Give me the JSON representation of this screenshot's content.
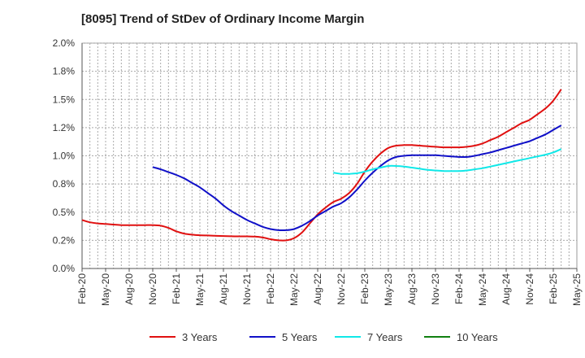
{
  "chart_data": {
    "type": "line",
    "title": "[8095]  Trend of StDev of Ordinary Income Margin",
    "xlabel": "",
    "ylabel": "",
    "ylim": [
      0,
      2.0
    ],
    "y_ticks": [
      0,
      0.25,
      0.5,
      0.75,
      1.0,
      1.25,
      1.5,
      1.75,
      2.0
    ],
    "y_tick_labels": [
      "0.0%",
      "0.2%",
      "0.5%",
      "0.8%",
      "1.0%",
      "1.2%",
      "1.5%",
      "1.8%",
      "2.0%"
    ],
    "x_tick_labels": [
      "Feb-20",
      "May-20",
      "Aug-20",
      "Nov-20",
      "Feb-21",
      "May-21",
      "Aug-21",
      "Nov-21",
      "Feb-22",
      "May-22",
      "Aug-22",
      "Nov-22",
      "Feb-23",
      "May-23",
      "Aug-23",
      "Nov-23",
      "Feb-24",
      "May-24",
      "Aug-24",
      "Nov-24",
      "Feb-25",
      "May-25"
    ],
    "grid": true,
    "legend_position": "bottom",
    "series": [
      {
        "name": "3 Years",
        "color": "#e01010",
        "points": [
          {
            "x": "Feb-20",
            "y": 0.43
          },
          {
            "x": "Mar-20",
            "y": 0.41
          },
          {
            "x": "Apr-20",
            "y": 0.4
          },
          {
            "x": "May-20",
            "y": 0.395
          },
          {
            "x": "Jun-20",
            "y": 0.39
          },
          {
            "x": "Jul-20",
            "y": 0.385
          },
          {
            "x": "Aug-20",
            "y": 0.385
          },
          {
            "x": "Sep-20",
            "y": 0.385
          },
          {
            "x": "Oct-20",
            "y": 0.385
          },
          {
            "x": "Nov-20",
            "y": 0.385
          },
          {
            "x": "Dec-20",
            "y": 0.38
          },
          {
            "x": "Jan-21",
            "y": 0.36
          },
          {
            "x": "Feb-21",
            "y": 0.33
          },
          {
            "x": "Mar-21",
            "y": 0.31
          },
          {
            "x": "Apr-21",
            "y": 0.3
          },
          {
            "x": "May-21",
            "y": 0.295
          },
          {
            "x": "Jun-21",
            "y": 0.293
          },
          {
            "x": "Jul-21",
            "y": 0.29
          },
          {
            "x": "Aug-21",
            "y": 0.288
          },
          {
            "x": "Sep-21",
            "y": 0.286
          },
          {
            "x": "Oct-21",
            "y": 0.285
          },
          {
            "x": "Nov-21",
            "y": 0.285
          },
          {
            "x": "Dec-21",
            "y": 0.283
          },
          {
            "x": "Jan-22",
            "y": 0.275
          },
          {
            "x": "Feb-22",
            "y": 0.26
          },
          {
            "x": "Mar-22",
            "y": 0.25
          },
          {
            "x": "Apr-22",
            "y": 0.25
          },
          {
            "x": "May-22",
            "y": 0.27
          },
          {
            "x": "Jun-22",
            "y": 0.32
          },
          {
            "x": "Jul-22",
            "y": 0.4
          },
          {
            "x": "Aug-22",
            "y": 0.48
          },
          {
            "x": "Sep-22",
            "y": 0.54
          },
          {
            "x": "Oct-22",
            "y": 0.59
          },
          {
            "x": "Nov-22",
            "y": 0.62
          },
          {
            "x": "Dec-22",
            "y": 0.67
          },
          {
            "x": "Jan-23",
            "y": 0.75
          },
          {
            "x": "Feb-23",
            "y": 0.86
          },
          {
            "x": "Mar-23",
            "y": 0.95
          },
          {
            "x": "Apr-23",
            "y": 1.02
          },
          {
            "x": "May-23",
            "y": 1.07
          },
          {
            "x": "Jun-23",
            "y": 1.09
          },
          {
            "x": "Jul-23",
            "y": 1.095
          },
          {
            "x": "Aug-23",
            "y": 1.095
          },
          {
            "x": "Sep-23",
            "y": 1.09
          },
          {
            "x": "Oct-23",
            "y": 1.085
          },
          {
            "x": "Nov-23",
            "y": 1.08
          },
          {
            "x": "Dec-23",
            "y": 1.075
          },
          {
            "x": "Jan-24",
            "y": 1.075
          },
          {
            "x": "Feb-24",
            "y": 1.075
          },
          {
            "x": "Mar-24",
            "y": 1.08
          },
          {
            "x": "Apr-24",
            "y": 1.09
          },
          {
            "x": "May-24",
            "y": 1.11
          },
          {
            "x": "Jun-24",
            "y": 1.14
          },
          {
            "x": "Jul-24",
            "y": 1.17
          },
          {
            "x": "Aug-24",
            "y": 1.21
          },
          {
            "x": "Sep-24",
            "y": 1.25
          },
          {
            "x": "Oct-24",
            "y": 1.29
          },
          {
            "x": "Nov-24",
            "y": 1.32
          },
          {
            "x": "Dec-24",
            "y": 1.37
          },
          {
            "x": "Jan-25",
            "y": 1.42
          },
          {
            "x": "Feb-25",
            "y": 1.49
          },
          {
            "x": "Mar-25",
            "y": 1.59
          }
        ]
      },
      {
        "name": "5 Years",
        "color": "#1010c8",
        "points": [
          {
            "x": "Nov-20",
            "y": 0.9
          },
          {
            "x": "Dec-20",
            "y": 0.88
          },
          {
            "x": "Jan-21",
            "y": 0.855
          },
          {
            "x": "Feb-21",
            "y": 0.83
          },
          {
            "x": "Mar-21",
            "y": 0.8
          },
          {
            "x": "Apr-21",
            "y": 0.76
          },
          {
            "x": "May-21",
            "y": 0.72
          },
          {
            "x": "Jun-21",
            "y": 0.67
          },
          {
            "x": "Jul-21",
            "y": 0.62
          },
          {
            "x": "Aug-21",
            "y": 0.56
          },
          {
            "x": "Sep-21",
            "y": 0.51
          },
          {
            "x": "Oct-21",
            "y": 0.47
          },
          {
            "x": "Nov-21",
            "y": 0.43
          },
          {
            "x": "Dec-21",
            "y": 0.4
          },
          {
            "x": "Jan-22",
            "y": 0.37
          },
          {
            "x": "Feb-22",
            "y": 0.35
          },
          {
            "x": "Mar-22",
            "y": 0.34
          },
          {
            "x": "Apr-22",
            "y": 0.34
          },
          {
            "x": "May-22",
            "y": 0.35
          },
          {
            "x": "Jun-22",
            "y": 0.38
          },
          {
            "x": "Jul-22",
            "y": 0.42
          },
          {
            "x": "Aug-22",
            "y": 0.47
          },
          {
            "x": "Sep-22",
            "y": 0.51
          },
          {
            "x": "Oct-22",
            "y": 0.55
          },
          {
            "x": "Nov-22",
            "y": 0.58
          },
          {
            "x": "Dec-22",
            "y": 0.63
          },
          {
            "x": "Jan-23",
            "y": 0.7
          },
          {
            "x": "Feb-23",
            "y": 0.78
          },
          {
            "x": "Mar-23",
            "y": 0.85
          },
          {
            "x": "Apr-23",
            "y": 0.91
          },
          {
            "x": "May-23",
            "y": 0.96
          },
          {
            "x": "Jun-23",
            "y": 0.99
          },
          {
            "x": "Jul-23",
            "y": 1.0
          },
          {
            "x": "Aug-23",
            "y": 1.005
          },
          {
            "x": "Sep-23",
            "y": 1.005
          },
          {
            "x": "Oct-23",
            "y": 1.005
          },
          {
            "x": "Nov-23",
            "y": 1.005
          },
          {
            "x": "Dec-23",
            "y": 1.0
          },
          {
            "x": "Jan-24",
            "y": 0.995
          },
          {
            "x": "Feb-24",
            "y": 0.99
          },
          {
            "x": "Mar-24",
            "y": 0.99
          },
          {
            "x": "Apr-24",
            "y": 1.0
          },
          {
            "x": "May-24",
            "y": 1.015
          },
          {
            "x": "Jun-24",
            "y": 1.03
          },
          {
            "x": "Jul-24",
            "y": 1.05
          },
          {
            "x": "Aug-24",
            "y": 1.07
          },
          {
            "x": "Sep-24",
            "y": 1.09
          },
          {
            "x": "Oct-24",
            "y": 1.11
          },
          {
            "x": "Nov-24",
            "y": 1.13
          },
          {
            "x": "Dec-24",
            "y": 1.16
          },
          {
            "x": "Jan-25",
            "y": 1.19
          },
          {
            "x": "Feb-25",
            "y": 1.23
          },
          {
            "x": "Mar-25",
            "y": 1.27
          }
        ]
      },
      {
        "name": "7 Years",
        "color": "#10e8e8",
        "points": [
          {
            "x": "Oct-22",
            "y": 0.85
          },
          {
            "x": "Nov-22",
            "y": 0.84
          },
          {
            "x": "Dec-22",
            "y": 0.84
          },
          {
            "x": "Jan-23",
            "y": 0.845
          },
          {
            "x": "Feb-23",
            "y": 0.86
          },
          {
            "x": "Mar-23",
            "y": 0.88
          },
          {
            "x": "Apr-23",
            "y": 0.895
          },
          {
            "x": "May-23",
            "y": 0.91
          },
          {
            "x": "Jun-23",
            "y": 0.91
          },
          {
            "x": "Jul-23",
            "y": 0.905
          },
          {
            "x": "Aug-23",
            "y": 0.895
          },
          {
            "x": "Sep-23",
            "y": 0.885
          },
          {
            "x": "Oct-23",
            "y": 0.875
          },
          {
            "x": "Nov-23",
            "y": 0.87
          },
          {
            "x": "Dec-23",
            "y": 0.865
          },
          {
            "x": "Jan-24",
            "y": 0.865
          },
          {
            "x": "Feb-24",
            "y": 0.865
          },
          {
            "x": "Mar-24",
            "y": 0.87
          },
          {
            "x": "Apr-24",
            "y": 0.88
          },
          {
            "x": "May-24",
            "y": 0.89
          },
          {
            "x": "Jun-24",
            "y": 0.905
          },
          {
            "x": "Jul-24",
            "y": 0.92
          },
          {
            "x": "Aug-24",
            "y": 0.935
          },
          {
            "x": "Sep-24",
            "y": 0.95
          },
          {
            "x": "Oct-24",
            "y": 0.965
          },
          {
            "x": "Nov-24",
            "y": 0.98
          },
          {
            "x": "Dec-24",
            "y": 0.995
          },
          {
            "x": "Jan-25",
            "y": 1.01
          },
          {
            "x": "Feb-25",
            "y": 1.03
          },
          {
            "x": "Mar-25",
            "y": 1.06
          }
        ]
      },
      {
        "name": "10 Years",
        "color": "#108010",
        "points": []
      }
    ]
  }
}
